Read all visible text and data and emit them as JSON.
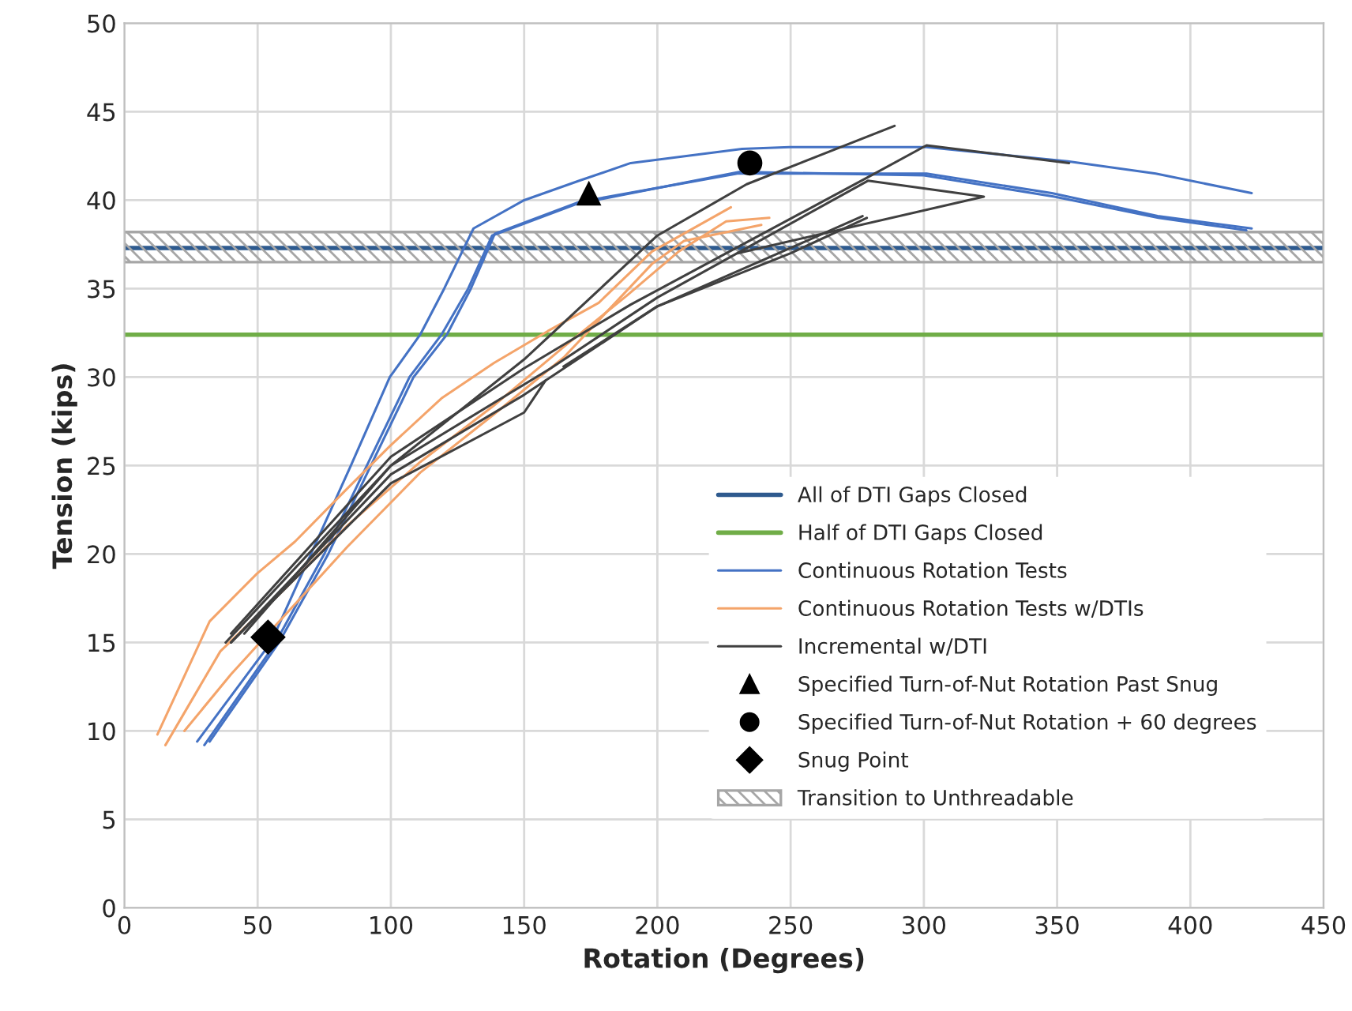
{
  "chart_data": {
    "type": "line",
    "xlabel": "Rotation (Degrees)",
    "ylabel": "Tension (kips)",
    "xlim": [
      0,
      450
    ],
    "xticks": [
      0,
      50,
      100,
      150,
      200,
      250,
      300,
      350,
      400,
      450
    ],
    "ylim": [
      0,
      50
    ],
    "yticks": [
      0,
      5,
      10,
      15,
      20,
      25,
      30,
      35,
      40,
      45,
      50
    ],
    "grid": true,
    "legend": "right",
    "ref_lines": [
      {
        "axis": "y",
        "value": 37.3,
        "label": "All of DTI Gaps Closed",
        "color": "#2e5a8e"
      },
      {
        "axis": "y",
        "value": 32.4,
        "label": "Half of DTI Gaps Closed",
        "color": "#70ad47"
      }
    ],
    "bands": [
      {
        "axis": "y",
        "from": 36.5,
        "to": 38.2,
        "label": "Transition to Unthreadable",
        "color": "#a6a6a6"
      }
    ],
    "series": [
      {
        "name": "Continuous Rotation Tests",
        "color": "#4472c4",
        "x": [
          27.3,
          55,
          70,
          85,
          99.6,
          111,
          120,
          131,
          150,
          170.7,
          190,
          231.8,
          249.6,
          301,
          354,
          387,
          423
        ],
        "values": [
          9.4,
          15,
          20,
          25,
          30,
          32.4,
          35,
          38.4,
          40,
          41.1,
          42.1,
          42.9,
          43.0,
          43.0,
          42.2,
          41.5,
          40.4
        ]
      },
      {
        "type": "line",
        "color": "#4472c4",
        "x": [
          32,
          58,
          76.5,
          92.5,
          108.5,
          121,
          130,
          139,
          170.7,
          230,
          301,
          348,
          387.7,
          423
        ],
        "values": [
          9.4,
          15,
          20,
          25,
          30,
          32.4,
          35,
          38.1,
          39.9,
          41.5,
          41.5,
          40.4,
          39.1,
          38.4
        ]
      },
      {
        "type": "line",
        "color": "#4472c4",
        "x": [
          30,
          56,
          75,
          91,
          107,
          119,
          129,
          138,
          170,
          231,
          300,
          349,
          388,
          421
        ],
        "values": [
          9.2,
          14.8,
          20,
          25,
          30,
          32.4,
          35,
          38.0,
          39.8,
          41.6,
          41.4,
          40.2,
          39.0,
          38.3
        ]
      },
      {
        "name": "Continuous Rotation Tests w/DTIs",
        "color": "#f4a46a",
        "x": [
          12.4,
          32,
          49.8,
          64,
          83.6,
          99.6,
          119,
          138.7,
          158.9,
          178,
          198,
          227.6
        ],
        "values": [
          9.8,
          16.2,
          18.9,
          20.7,
          23.7,
          26.1,
          28.8,
          30.8,
          32.6,
          34.2,
          37.1,
          39.6
        ]
      },
      {
        "type": "line",
        "color": "#f4a46a",
        "x": [
          15.4,
          36,
          60,
          83.6,
          111,
          138.7,
          164.8,
          188.5,
          208,
          225.8,
          242
        ],
        "values": [
          9.2,
          14.5,
          18,
          21.6,
          25.2,
          28.4,
          31.7,
          34.6,
          37.1,
          38.8,
          39.0
        ]
      },
      {
        "type": "line",
        "color": "#f4a46a",
        "x": [
          22.5,
          40,
          60,
          83.6,
          111,
          138.7,
          164.8,
          198,
          210,
          239
        ],
        "values": [
          10,
          13.2,
          16.5,
          20.4,
          24.6,
          27.9,
          31.1,
          36.4,
          37.7,
          38.6
        ]
      },
      {
        "name": "Incremental w/DTI",
        "color": "#404040",
        "x": [
          38,
          100,
          150,
          200,
          233.5,
          289
        ],
        "values": [
          15,
          25,
          31,
          38,
          40.9,
          44.2
        ]
      },
      {
        "type": "line",
        "color": "#404040",
        "x": [
          40,
          100,
          150,
          190,
          279,
          301,
          354.5
        ],
        "values": [
          15.5,
          25.5,
          30.5,
          34.1,
          41.3,
          43.1,
          42.1
        ]
      },
      {
        "type": "line",
        "color": "#404040",
        "x": [
          45,
          100,
          160,
          200,
          279,
          322.5,
          230
        ],
        "values": [
          15.5,
          25,
          30.5,
          34.5,
          41.1,
          40.2,
          37.0
        ]
      },
      {
        "type": "line",
        "color": "#404040",
        "x": [
          40,
          100,
          150,
          200,
          250,
          278.6
        ],
        "values": [
          15,
          24.5,
          29,
          34,
          37,
          39.0
        ]
      },
      {
        "type": "line",
        "color": "#404040",
        "x": [
          40,
          100,
          150,
          158
        ],
        "values": [
          15,
          24,
          28,
          29.8
        ]
      },
      {
        "type": "line",
        "color": "#404040",
        "x": [
          164.8,
          200,
          250,
          277
        ],
        "values": [
          30.6,
          34,
          37.3,
          39.1
        ]
      },
      {
        "name": "Specified Turn-of-Nut Rotation Past Snug",
        "type": "scatter",
        "marker": "triangle",
        "color": "#000000",
        "x": [
          174.3
        ],
        "values": [
          40.4
        ]
      },
      {
        "name": "Specified Turn-of-Nut Rotation + 60 degrees",
        "type": "scatter",
        "marker": "circle",
        "color": "#000000",
        "x": [
          234.7
        ],
        "values": [
          42.1
        ]
      },
      {
        "name": "Snug Point",
        "type": "scatter",
        "marker": "diamond",
        "color": "#000000",
        "x": [
          53.9
        ],
        "values": [
          15.3
        ]
      }
    ]
  }
}
